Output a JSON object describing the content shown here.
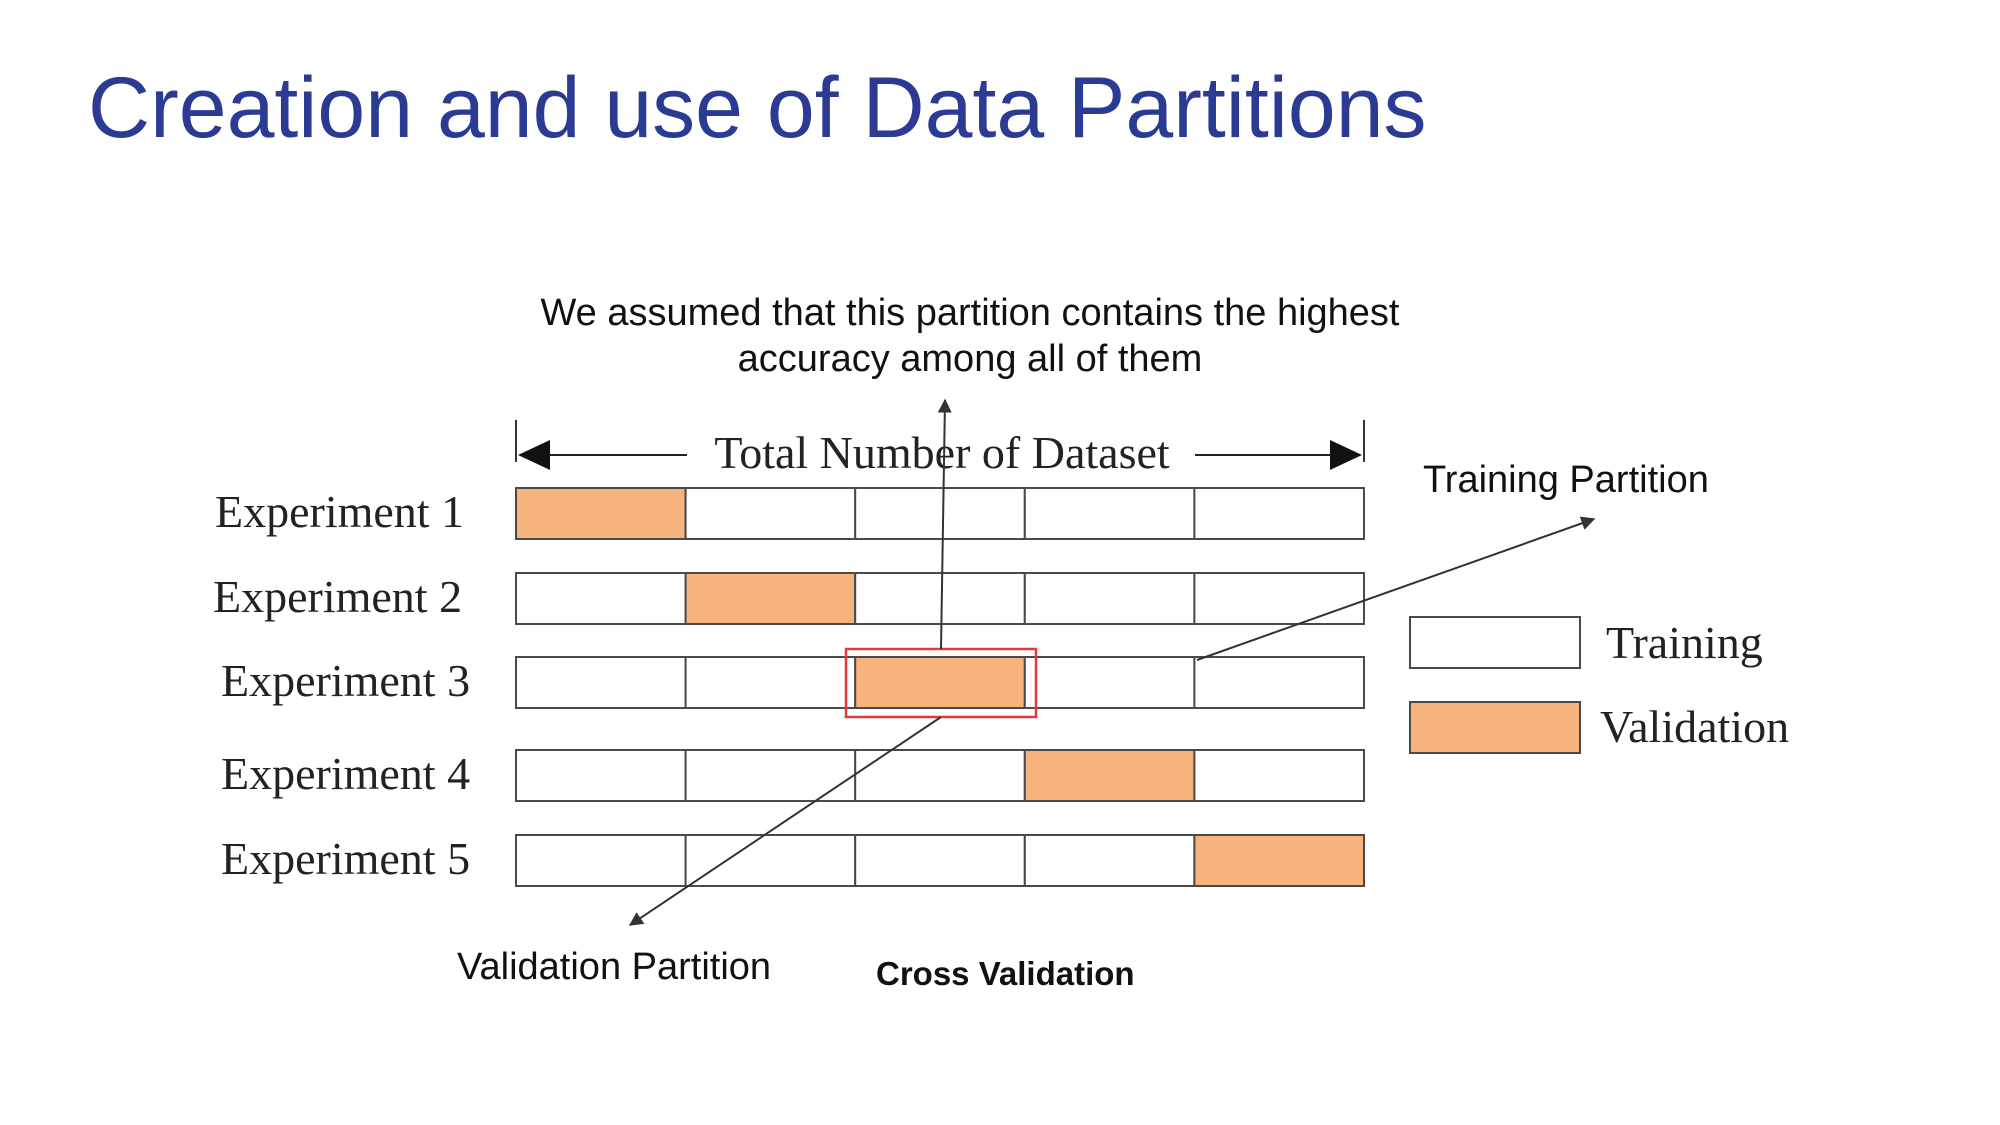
{
  "slide": {
    "title": "Creation and use of Data Partitions"
  },
  "annotations": {
    "top_line1": "We assumed that this partition contains the highest",
    "top_line2": "accuracy among all of them",
    "training_partition": "Training Partition",
    "validation_partition": "Validation Partition",
    "cross_validation": "Cross Validation"
  },
  "diagram": {
    "header": "Total Number of Dataset",
    "folds": 5,
    "experiments": [
      {
        "label": "Experiment 1",
        "validation_fold": 1
      },
      {
        "label": "Experiment 2",
        "validation_fold": 2
      },
      {
        "label": "Experiment 3",
        "validation_fold": 3
      },
      {
        "label": "Experiment 4",
        "validation_fold": 4
      },
      {
        "label": "Experiment 5",
        "validation_fold": 5
      }
    ],
    "highlighted_experiment": 3,
    "legend": [
      {
        "label": "Training",
        "color": "#ffffff"
      },
      {
        "label": "Validation",
        "color": "#f6b47c"
      }
    ],
    "colors": {
      "training": "#ffffff",
      "validation": "#f6b47c",
      "highlight": "#e33b3b",
      "border": "#4a4a4a"
    }
  }
}
